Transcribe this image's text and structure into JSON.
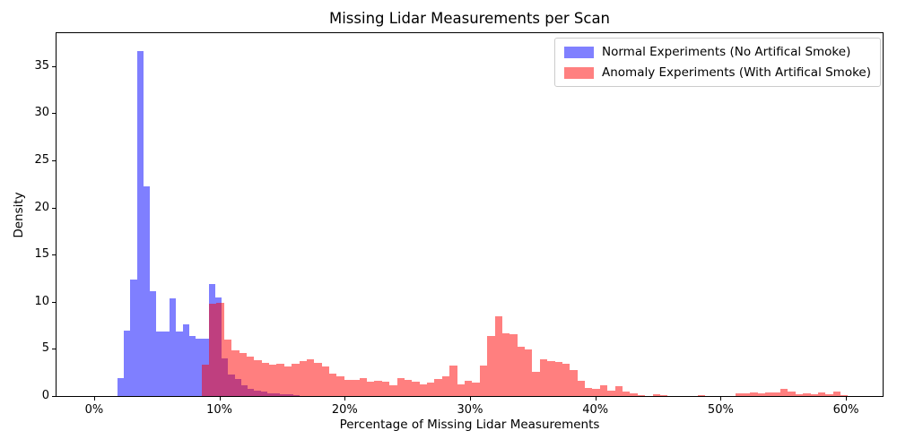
{
  "figure": {
    "title": "Missing Lidar Measurements per Scan",
    "xlabel": "Percentage of Missing Lidar Measurements",
    "ylabel": "Density"
  },
  "legend": {
    "items": [
      {
        "label": "Normal Experiments (No Artifical Smoke)",
        "color": "#8080ff"
      },
      {
        "label": "Anomaly Experiments (With Artifical Smoke)",
        "color": "#ff8080"
      }
    ]
  },
  "chart_data": {
    "type": "bar",
    "subtype": "overlaid-histogram",
    "title": "Missing Lidar Measurements per Scan",
    "xlabel": "Percentage of Missing Lidar Measurements",
    "ylabel": "Density",
    "grid": "off",
    "legend_position": "upper-right",
    "x_axis": {
      "range_pct": [
        -3,
        62.93
      ],
      "ticks": [
        {
          "value": 0,
          "label": "0%"
        },
        {
          "value": 10,
          "label": "10%"
        },
        {
          "value": 20,
          "label": "20%"
        },
        {
          "value": 30,
          "label": "30%"
        },
        {
          "value": 40,
          "label": "40%"
        },
        {
          "value": 50,
          "label": "50%"
        },
        {
          "value": 60,
          "label": "60%"
        }
      ]
    },
    "y_axis": {
      "range": [
        0,
        38.5
      ],
      "ticks": [
        0,
        5,
        10,
        15,
        20,
        25,
        30,
        35
      ]
    },
    "overlap_blend_color": "#bf4080",
    "series": [
      {
        "id": "normal",
        "name": "Normal Experiments (No Artifical Smoke)",
        "color": "rgba(0,0,255,0.5)",
        "bin_start_pct": 1.86,
        "bin_width_pct": 0.52,
        "heights": [
          1.9,
          6.9,
          12.35,
          36.6,
          22.25,
          11.1,
          6.8,
          6.8,
          10.35,
          6.8,
          7.65,
          6.35,
          6.1,
          6.1,
          11.9,
          10.5,
          4.0,
          2.3,
          1.8,
          1.1,
          0.75,
          0.6,
          0.45,
          0.3,
          0.25,
          0.2,
          0.15,
          0.1
        ]
      },
      {
        "id": "anomaly",
        "name": "Anomaly Experiments (With Artifical Smoke)",
        "color": "rgba(255,0,0,0.5)",
        "bin_start_pct": 8.57,
        "bin_width_pct": 0.6,
        "heights": [
          3.3,
          9.8,
          9.9,
          6.0,
          4.85,
          4.55,
          4.2,
          3.8,
          3.55,
          3.3,
          3.45,
          3.1,
          3.4,
          3.7,
          3.9,
          3.5,
          3.1,
          2.4,
          2.1,
          1.75,
          1.75,
          1.95,
          1.55,
          1.65,
          1.5,
          1.1,
          1.9,
          1.7,
          1.5,
          1.2,
          1.4,
          1.85,
          2.1,
          3.2,
          1.2,
          1.6,
          1.4,
          3.25,
          6.4,
          8.5,
          6.7,
          6.6,
          5.25,
          4.9,
          2.6,
          3.9,
          3.7,
          3.6,
          3.45,
          2.8,
          1.6,
          0.9,
          0.8,
          1.15,
          0.6,
          1.0,
          0.45,
          0.28,
          0.1,
          0,
          0.2,
          0.1,
          0,
          0,
          0,
          0,
          0.12,
          0,
          0,
          0,
          0,
          0.28,
          0.3,
          0.35,
          0.3,
          0.38,
          0.4,
          0.79,
          0.45,
          0.2,
          0.28,
          0.22,
          0.35,
          0.15,
          0.45,
          0.1
        ]
      }
    ]
  }
}
